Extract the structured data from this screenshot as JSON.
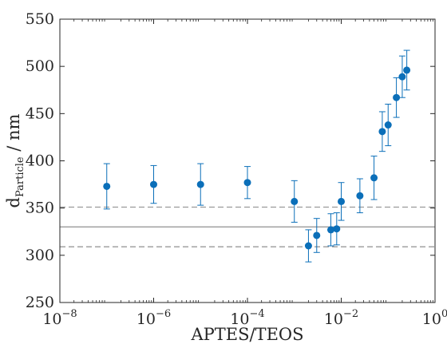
{
  "chart_data": {
    "type": "scatter",
    "title": "",
    "xlabel": "APTES/TEOS",
    "ylabel_main": "d",
    "ylabel_sub": "Particle",
    "ylabel_unit": " / nm",
    "xscale": "log",
    "xlim": [
      1e-08,
      1
    ],
    "ylim": [
      250,
      550
    ],
    "x_ticks": [
      {
        "base": "10",
        "exp": "−8"
      },
      {
        "base": "10",
        "exp": "−6"
      },
      {
        "base": "10",
        "exp": "−4"
      },
      {
        "base": "10",
        "exp": "−2"
      },
      {
        "base": "10",
        "exp": "0"
      }
    ],
    "y_ticks": [
      "250",
      "300",
      "350",
      "400",
      "450",
      "500",
      "550"
    ],
    "grid": false,
    "marker_color": "#0b6fb9",
    "reference_lines": [
      {
        "y": 330,
        "style": "solid",
        "color": "#9a9a9a"
      },
      {
        "y": 351,
        "style": "dashed",
        "color": "#9a9a9a"
      },
      {
        "y": 309,
        "style": "dashed",
        "color": "#9a9a9a"
      }
    ],
    "points": [
      {
        "x": 1e-07,
        "y": 373,
        "err_low": 349,
        "err_high": 397
      },
      {
        "x": 1e-06,
        "y": 375,
        "err_low": 355,
        "err_high": 395
      },
      {
        "x": 1e-05,
        "y": 375,
        "err_low": 353,
        "err_high": 397
      },
      {
        "x": 0.0001,
        "y": 377,
        "err_low": 360,
        "err_high": 394
      },
      {
        "x": 0.001,
        "y": 357,
        "err_low": 335,
        "err_high": 379
      },
      {
        "x": 0.002,
        "y": 310,
        "err_low": 293,
        "err_high": 327
      },
      {
        "x": 0.003,
        "y": 321,
        "err_low": 303,
        "err_high": 339
      },
      {
        "x": 0.006,
        "y": 327,
        "err_low": 310,
        "err_high": 344
      },
      {
        "x": 0.008,
        "y": 328,
        "err_low": 311,
        "err_high": 345
      },
      {
        "x": 0.01,
        "y": 357,
        "err_low": 337,
        "err_high": 377
      },
      {
        "x": 0.025,
        "y": 363,
        "err_low": 345,
        "err_high": 381
      },
      {
        "x": 0.05,
        "y": 382,
        "err_low": 359,
        "err_high": 405
      },
      {
        "x": 0.075,
        "y": 431,
        "err_low": 410,
        "err_high": 452
      },
      {
        "x": 0.1,
        "y": 438,
        "err_low": 416,
        "err_high": 460
      },
      {
        "x": 0.15,
        "y": 467,
        "err_low": 446,
        "err_high": 488
      },
      {
        "x": 0.2,
        "y": 489,
        "err_low": 467,
        "err_high": 511
      },
      {
        "x": 0.25,
        "y": 496,
        "err_low": 475,
        "err_high": 517
      }
    ]
  }
}
